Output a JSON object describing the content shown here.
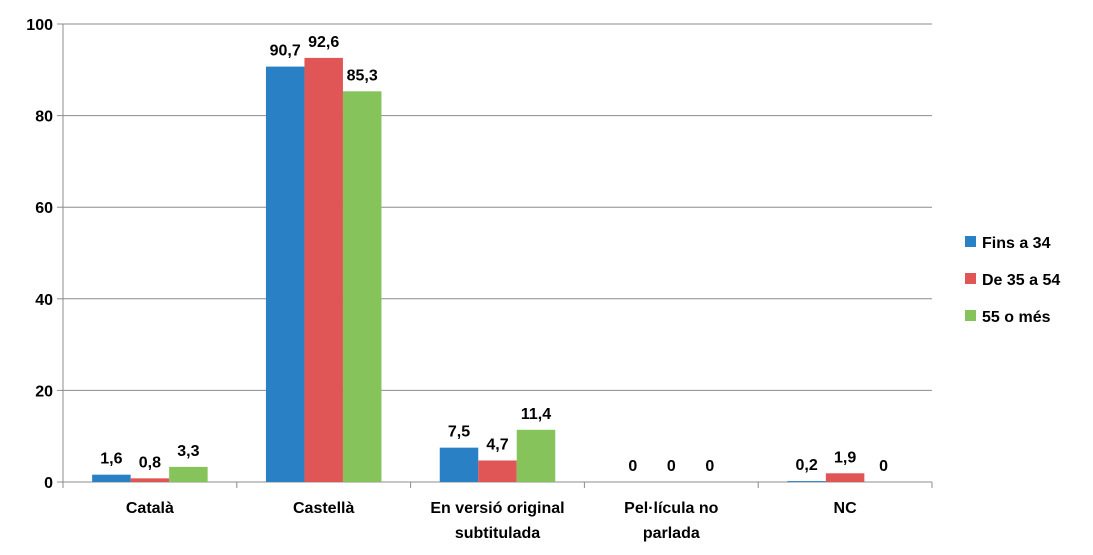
{
  "chart_data": {
    "type": "bar",
    "categories": [
      [
        "Català"
      ],
      [
        "Castellà"
      ],
      [
        "En versió original",
        "subtitulada"
      ],
      [
        "Pel·lícula no",
        "parlada"
      ],
      [
        "NC"
      ]
    ],
    "series": [
      {
        "name": "Fins a 34",
        "color": "#2980C4",
        "values": [
          1.6,
          90.7,
          7.5,
          0,
          0.2
        ],
        "labels": [
          "1,6",
          "90,7",
          "7,5",
          "0",
          "0,2"
        ]
      },
      {
        "name": "De 35 a 54",
        "color": "#E05555",
        "values": [
          0.8,
          92.6,
          4.7,
          0,
          1.9
        ],
        "labels": [
          "0,8",
          "92,6",
          "4,7",
          "0",
          "1,9"
        ]
      },
      {
        "name": "55 o més",
        "color": "#86C35A",
        "values": [
          3.3,
          85.3,
          11.4,
          0,
          0
        ],
        "labels": [
          "3,3",
          "85,3",
          "11,4",
          "0",
          "0"
        ]
      }
    ],
    "yticks": [
      "0",
      "20",
      "40",
      "60",
      "80",
      "100"
    ],
    "ylim": [
      0,
      100
    ],
    "grid": true,
    "legend_position": "right"
  }
}
